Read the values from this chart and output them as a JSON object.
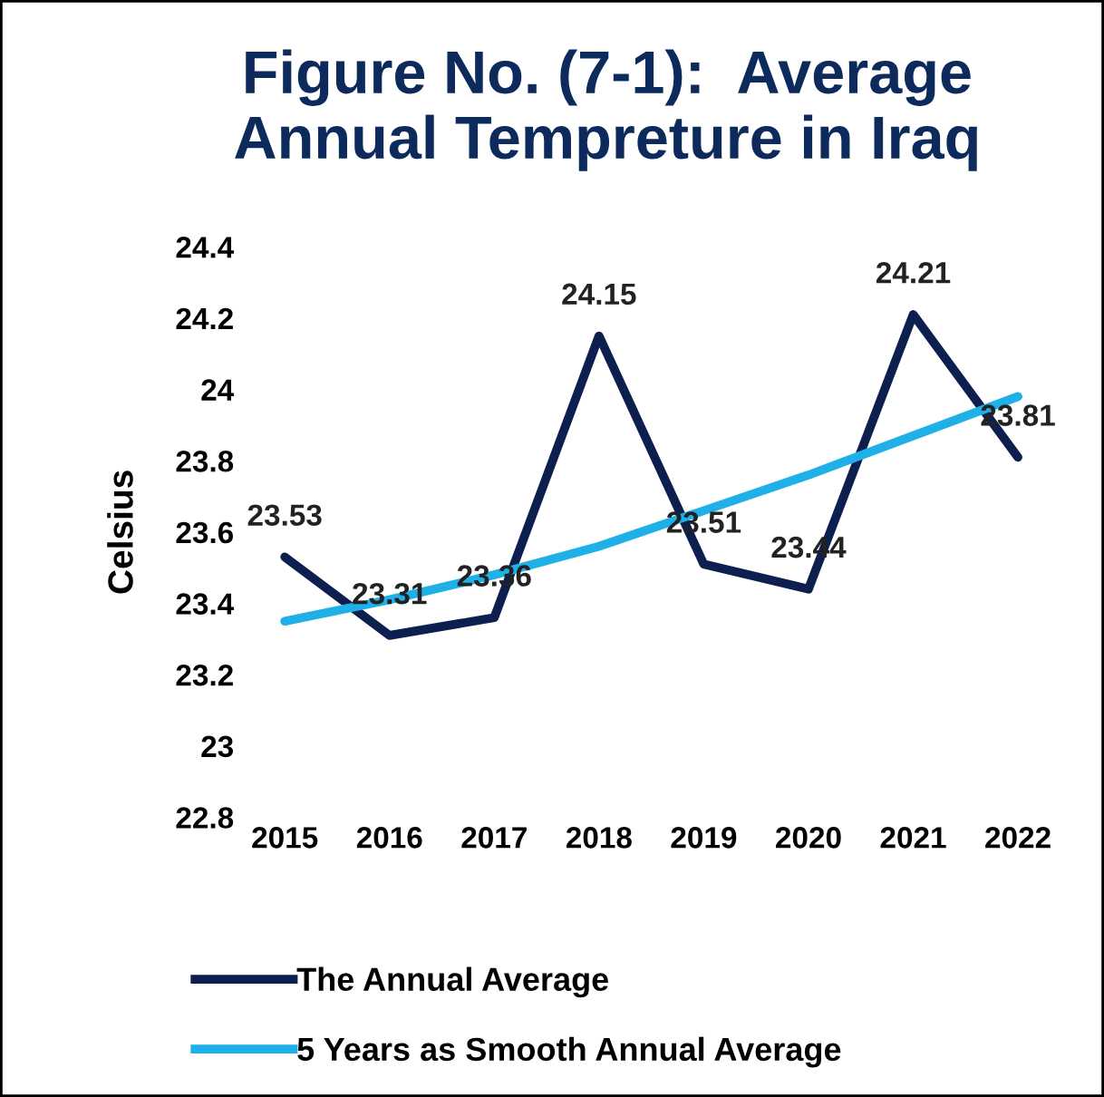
{
  "chart_data": {
    "type": "line",
    "title": "Figure No. (7-1):  Average\nAnnual Tempreture in Iraq",
    "ylabel": "Celsius",
    "categories": [
      "2015",
      "2016",
      "2017",
      "2018",
      "2019",
      "2020",
      "2021",
      "2022"
    ],
    "series": [
      {
        "name": "The Annual Average",
        "color": "#0d1f4f",
        "values": [
          23.53,
          23.31,
          23.36,
          24.15,
          23.51,
          23.44,
          24.21,
          23.81
        ],
        "value_labels": [
          "23.53",
          "23.31",
          "23.36",
          "24.15",
          "23.51",
          "23.44",
          "24.21",
          "23.81"
        ]
      },
      {
        "name": "5 Years as Smooth Annual Average",
        "color": "#1fb0e8",
        "values": [
          23.35,
          23.41,
          23.48,
          23.56,
          23.66,
          23.76,
          23.87,
          23.98
        ]
      }
    ],
    "ylim": [
      22.8,
      24.4
    ],
    "yticks": [
      22.8,
      23,
      23.2,
      23.4,
      23.6,
      23.8,
      24,
      24.2,
      24.4
    ],
    "grid": false,
    "legend": "bottom",
    "marker": "none",
    "line_style": "solid"
  }
}
